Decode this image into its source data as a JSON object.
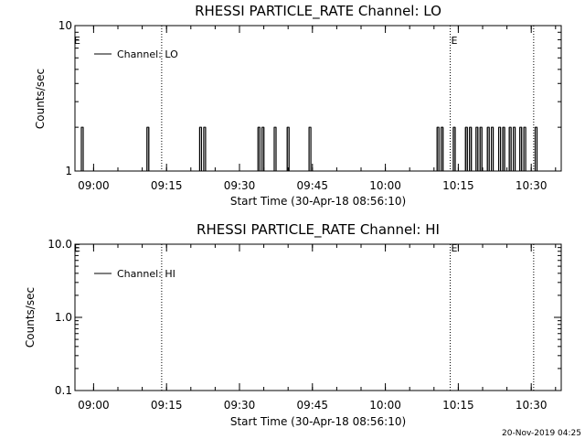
{
  "chart_data": [
    {
      "type": "line",
      "title": "RHESSI PARTICLE_RATE Channel: LO",
      "xlabel": "Start Time (30-Apr-18 08:56:10)",
      "ylabel": "Counts/sec",
      "y_scale": "log",
      "ylim": [
        1,
        10
      ],
      "y_ticks": [
        {
          "value": 1,
          "label": "1"
        },
        {
          "value": 10,
          "label": "10"
        }
      ],
      "x_range": [
        "08:56:10",
        "10:36:10"
      ],
      "x_ticks": [
        "09:00",
        "09:15",
        "09:30",
        "09:45",
        "10:00",
        "10:15",
        "10:30"
      ],
      "grid": false,
      "legend": {
        "position": "top-left",
        "entries": [
          "Channel: LO"
        ]
      },
      "markers": [
        {
          "time": "09:14:00",
          "label": ""
        },
        {
          "time": "10:13:20",
          "label": "E"
        },
        {
          "time": "10:30:30",
          "label": ""
        }
      ],
      "start_marker_label": "E",
      "series": [
        {
          "name": "Channel: LO",
          "baseline": 1,
          "peak": 2,
          "pulse_times": [
            "08:57:40",
            "09:11:10",
            "09:22:00",
            "09:22:50",
            "09:34:00",
            "09:34:50",
            "09:37:20",
            "09:40:00",
            "09:44:30",
            "10:10:50",
            "10:11:40",
            "10:14:10",
            "10:16:40",
            "10:17:30",
            "10:18:50",
            "10:19:40",
            "10:21:10",
            "10:22:00",
            "10:23:30",
            "10:24:20",
            "10:25:40",
            "10:26:30",
            "10:27:50",
            "10:28:40",
            "10:31:00"
          ],
          "pulse_width_seconds": 20
        }
      ]
    },
    {
      "type": "line",
      "title": "RHESSI PARTICLE_RATE Channel: HI",
      "xlabel": "Start Time (30-Apr-18 08:56:10)",
      "ylabel": "Counts/sec",
      "y_scale": "log",
      "ylim": [
        0.1,
        10
      ],
      "y_ticks": [
        {
          "value": 0.1,
          "label": "0.1"
        },
        {
          "value": 1,
          "label": "1.0"
        },
        {
          "value": 10,
          "label": "10.0"
        }
      ],
      "x_range": [
        "08:56:10",
        "10:36:10"
      ],
      "x_ticks": [
        "09:00",
        "09:15",
        "09:30",
        "09:45",
        "10:00",
        "10:15",
        "10:30"
      ],
      "grid": false,
      "legend": {
        "position": "top-left",
        "entries": [
          "Channel: HI"
        ]
      },
      "markers": [
        {
          "time": "09:14:00",
          "label": ""
        },
        {
          "time": "10:13:20",
          "label": "E"
        },
        {
          "time": "10:30:30",
          "label": ""
        }
      ],
      "start_marker_label": "E",
      "series": [
        {
          "name": "Channel: HI",
          "baseline": 0,
          "peak": 0,
          "pulse_times": [],
          "pulse_width_seconds": 20
        }
      ]
    }
  ],
  "footer": {
    "timestamp": "20-Nov-2019 04:25"
  }
}
